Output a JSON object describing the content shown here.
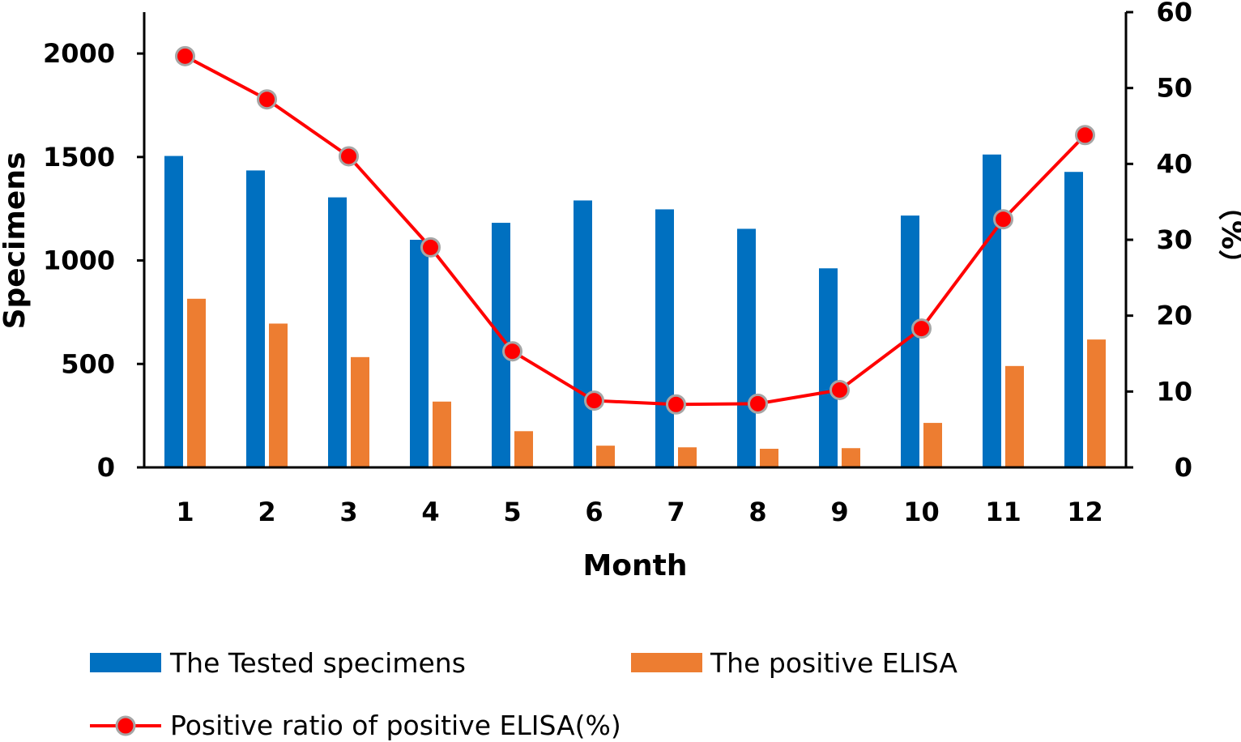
{
  "chart_data": {
    "type": "bar",
    "categories": [
      "1",
      "2",
      "3",
      "4",
      "5",
      "6",
      "7",
      "8",
      "9",
      "10",
      "11",
      "12"
    ],
    "series": [
      {
        "name": "The Tested specimens",
        "kind": "bar",
        "axis": "left",
        "color": "#0070C0",
        "values": [
          1505,
          1435,
          1305,
          1100,
          1182,
          1290,
          1247,
          1153,
          962,
          1217,
          1512,
          1428
        ]
      },
      {
        "name": "The positive ELISA",
        "kind": "bar",
        "axis": "left",
        "color": "#ED7D31",
        "values": [
          815,
          695,
          533,
          318,
          175,
          105,
          97,
          90,
          93,
          215,
          490,
          618
        ]
      },
      {
        "name": "Positive ratio of positive ELISA(%)",
        "kind": "line",
        "axis": "right",
        "color": "#FF0000",
        "marker_stroke": "#A6A6A6",
        "values": [
          54.2,
          48.5,
          41.0,
          29.0,
          15.3,
          8.8,
          8.3,
          8.4,
          10.2,
          18.3,
          32.7,
          43.8
        ]
      }
    ],
    "xlabel": "Month",
    "ylabel": "Specimens",
    "y2label": "（%）",
    "ylim": [
      0,
      2200
    ],
    "y2lim": [
      0,
      60
    ],
    "yticks": [
      "0",
      "500",
      "1000",
      "1500",
      "2000"
    ],
    "y2ticks": [
      "0",
      "10",
      "20",
      "30",
      "40",
      "50",
      "60"
    ],
    "legend_position": "bottom"
  }
}
